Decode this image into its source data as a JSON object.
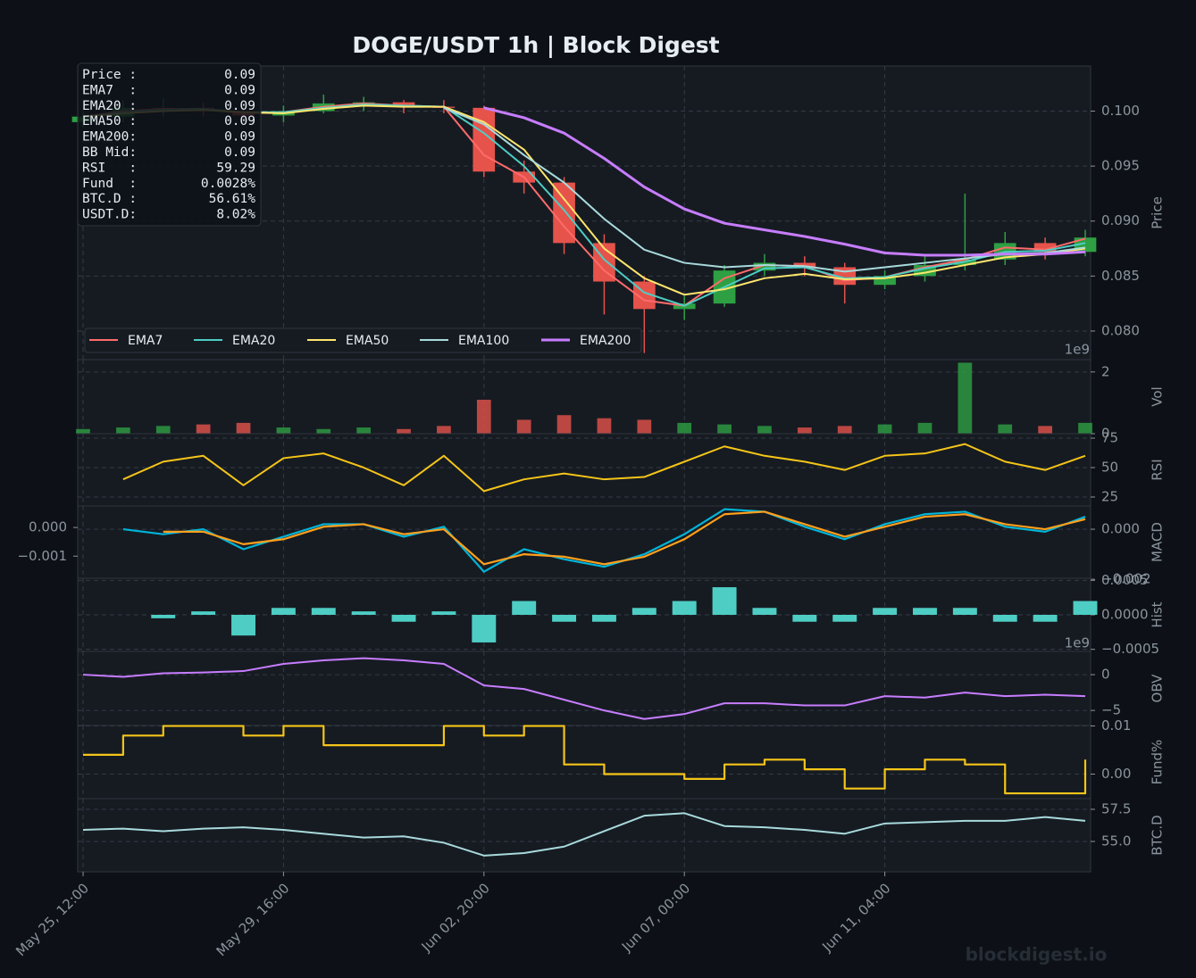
{
  "title": "DOGE/USDT  1h  |  Block Digest",
  "watermark": "blockdigest.io",
  "footer": "blockdigest.io",
  "info_box": {
    "rows": [
      {
        "label": "Price :",
        "value": "0.09"
      },
      {
        "label": "EMA7  :",
        "value": "0.09"
      },
      {
        "label": "EMA20 :",
        "value": "0.09"
      },
      {
        "label": "EMA50 :",
        "value": "0.09"
      },
      {
        "label": "EMA200:",
        "value": "0.09"
      },
      {
        "label": "BB Mid:",
        "value": "0.09"
      },
      {
        "label": "RSI   :",
        "value": "59.29"
      },
      {
        "label": "Fund  :",
        "value": "0.0028%"
      },
      {
        "label": "BTC.D :",
        "value": "56.61%"
      },
      {
        "label": "USDT.D:",
        "value": "8.02%"
      }
    ]
  },
  "chart_data": [
    {
      "type": "candlestick",
      "y_label": "Price",
      "categories": [
        "May 25, 12:00",
        null,
        null,
        null,
        null,
        "May 29, 16:00",
        null,
        null,
        null,
        null,
        "Jun 02, 20:00",
        null,
        null,
        null,
        null,
        "Jun 07, 00:00",
        null,
        null,
        null,
        null,
        "Jun 11, 04:00",
        null,
        null,
        null,
        null,
        null
      ],
      "open": [
        0.099,
        0.0995,
        0.1003,
        0.1003,
        0.1,
        0.0996,
        0.1,
        0.1007,
        0.1008,
        0.1004,
        0.1003,
        0.0945,
        0.0935,
        0.088,
        0.0845,
        0.082,
        0.0825,
        0.0855,
        0.0862,
        0.0858,
        0.0842,
        0.085,
        0.086,
        0.0865,
        0.088,
        0.0872
      ],
      "high": [
        0.1,
        0.101,
        0.1012,
        0.1008,
        0.1003,
        0.1005,
        0.1015,
        0.1013,
        0.101,
        0.101,
        0.1005,
        0.0955,
        0.094,
        0.0888,
        0.085,
        0.0832,
        0.086,
        0.087,
        0.0868,
        0.0862,
        0.0855,
        0.0868,
        0.0925,
        0.089,
        0.0885,
        0.0892
      ],
      "low": [
        0.0985,
        0.099,
        0.0995,
        0.0995,
        0.099,
        0.099,
        0.0998,
        0.1,
        0.0998,
        0.0998,
        0.094,
        0.0925,
        0.087,
        0.0815,
        0.078,
        0.081,
        0.0822,
        0.085,
        0.085,
        0.0825,
        0.0838,
        0.0845,
        0.0855,
        0.086,
        0.0865,
        0.0868
      ],
      "close": [
        0.0995,
        0.1003,
        0.1003,
        0.1,
        0.0996,
        0.1,
        0.1007,
        0.1008,
        0.1004,
        0.1003,
        0.0945,
        0.0935,
        0.088,
        0.0845,
        0.082,
        0.0825,
        0.0855,
        0.0862,
        0.0858,
        0.0842,
        0.085,
        0.086,
        0.0865,
        0.088,
        0.0872,
        0.0885
      ],
      "up_color": "#2ea043",
      "down_color": "#e5534b",
      "series": [
        {
          "name": "EMA7",
          "color": "#ff6b6b",
          "values": [
            0.0995,
            0.1,
            0.1002,
            0.1002,
            0.0998,
            0.0999,
            0.1004,
            0.1007,
            0.1005,
            0.1004,
            0.096,
            0.094,
            0.0895,
            0.0855,
            0.0828,
            0.0823,
            0.0848,
            0.086,
            0.0859,
            0.0846,
            0.0849,
            0.0858,
            0.0865,
            0.0876,
            0.0874,
            0.0884
          ]
        },
        {
          "name": "EMA20",
          "color": "#4ecdc4",
          "values": [
            0.0995,
            0.0999,
            0.1001,
            0.1002,
            0.0999,
            0.0999,
            0.1003,
            0.1006,
            0.1005,
            0.1004,
            0.098,
            0.095,
            0.091,
            0.0865,
            0.0835,
            0.0823,
            0.084,
            0.0857,
            0.0858,
            0.0848,
            0.0849,
            0.0857,
            0.0863,
            0.0872,
            0.0873,
            0.088
          ]
        },
        {
          "name": "EMA50",
          "color": "#ffe66d",
          "values": [
            0.0995,
            0.0998,
            0.1,
            0.1001,
            0.0999,
            0.0998,
            0.1002,
            0.1005,
            0.1004,
            0.1004,
            0.099,
            0.0965,
            0.092,
            0.0875,
            0.0848,
            0.0833,
            0.0838,
            0.0848,
            0.0852,
            0.0847,
            0.0848,
            0.0853,
            0.086,
            0.0867,
            0.087,
            0.0875
          ]
        },
        {
          "name": "EMA100",
          "color": "#a8dadc",
          "values": [
            null,
            null,
            null,
            null,
            null,
            null,
            null,
            null,
            null,
            0.1003,
            0.0988,
            0.096,
            0.0935,
            0.0902,
            0.0874,
            0.0862,
            0.0858,
            0.086,
            0.0859,
            0.0854,
            0.0858,
            0.0862,
            0.0866,
            0.087,
            0.0871,
            0.0876
          ]
        },
        {
          "name": "EMA200",
          "color": "#c77dff",
          "values": [
            null,
            null,
            null,
            null,
            null,
            null,
            null,
            null,
            null,
            null,
            0.1003,
            0.0994,
            0.098,
            0.0957,
            0.0931,
            0.0911,
            0.0898,
            0.0892,
            0.0886,
            0.0879,
            0.0871,
            0.0869,
            0.0869,
            0.087,
            0.087,
            0.0872
          ]
        }
      ],
      "legend": "lower left",
      "ylim": [
        0.0774,
        0.1041
      ],
      "yticks": [
        {
          "value": 0.08,
          "label": "0.080"
        },
        {
          "value": 0.085,
          "label": "0.085"
        },
        {
          "value": 0.09,
          "label": "0.090"
        },
        {
          "value": 0.095,
          "label": "0.095"
        },
        {
          "value": 0.1,
          "label": "0.100"
        }
      ],
      "grid": true
    },
    {
      "type": "bar",
      "y_label": "Vol",
      "offset_label": "1e9",
      "values": [
        0.15,
        0.2,
        0.25,
        0.3,
        0.35,
        0.2,
        0.15,
        0.2,
        0.15,
        0.25,
        1.1,
        0.45,
        0.6,
        0.5,
        0.45,
        0.35,
        0.3,
        0.25,
        0.2,
        0.25,
        0.3,
        0.35,
        2.3,
        0.3,
        0.25,
        0.35
      ],
      "ylim": [
        0,
        2.4
      ],
      "yticks": [
        0,
        2
      ],
      "grid": true
    },
    {
      "type": "line",
      "y_label": "RSI",
      "color": "#f5c518",
      "values": [
        null,
        40,
        55,
        60,
        35,
        58,
        62,
        50,
        35,
        60,
        30,
        40,
        45,
        40,
        42,
        55,
        68,
        60,
        55,
        48,
        60,
        62,
        70,
        55,
        48,
        60
      ],
      "ylim": [
        17.4,
        78.8
      ],
      "yticks": [
        25,
        50,
        75
      ],
      "grid": true
    },
    {
      "type": "line",
      "y_label": "MACD",
      "series": [
        {
          "color": "#00b4d8",
          "values": [
            null,
            0.0,
            -0.0002,
            0.0,
            -0.0008,
            -0.0003,
            0.0002,
            0.0002,
            -0.0003,
            0.0001,
            -0.0017,
            -0.0008,
            -0.0012,
            -0.0015,
            -0.001,
            -0.0002,
            0.0008,
            0.0007,
            0.0001,
            -0.0004,
            0.0002,
            0.0006,
            0.0007,
            0.0001,
            -0.0001,
            0.0005
          ]
        },
        {
          "color": "#ff9f1c",
          "values": [
            null,
            null,
            -0.0001,
            -0.0001,
            -0.0006,
            -0.0004,
            0.0001,
            0.0002,
            -0.0002,
            0.0,
            -0.0014,
            -0.001,
            -0.0011,
            -0.0014,
            -0.0011,
            -0.0004,
            0.0006,
            0.0007,
            0.0002,
            -0.0003,
            0.0001,
            0.0005,
            0.0006,
            0.0002,
            0.0,
            0.0004
          ]
        }
      ],
      "ylim": [
        -0.00196,
        0.00093
      ],
      "yticks": [
        {
          "value": 0.0,
          "label": "0.000"
        },
        {
          "value": -0.002,
          "label": "−0.002"
        }
      ],
      "y2lim": [
        -0.00177,
        0.00075
      ],
      "y2ticks": [
        {
          "value": 0.0,
          "label": "0.000"
        },
        {
          "value": -0.001,
          "label": "−0.001"
        }
      ],
      "grid": true
    },
    {
      "type": "bar",
      "y_label": "Hist",
      "color": "#4ecdc4",
      "values": [
        null,
        null,
        -5e-05,
        5e-05,
        -0.0003,
        0.0001,
        0.0001,
        5e-05,
        -0.0001,
        5e-05,
        -0.0004,
        0.0002,
        -0.0001,
        -0.0001,
        0.0001,
        0.0002,
        0.0004,
        0.0001,
        -0.0001,
        -0.0001,
        0.0001,
        0.0001,
        0.0001,
        -0.0001,
        -0.0001,
        0.0002
      ],
      "ylim": [
        -0.00053,
        0.00053
      ],
      "yticks": [
        {
          "value": -0.0005,
          "label": "−0.0005"
        },
        {
          "value": 0,
          "label": "0.0000"
        },
        {
          "value": 0.0005,
          "label": "0.0005"
        }
      ],
      "grid": true
    },
    {
      "type": "line",
      "y_label": "OBV",
      "offset_label": "1e9",
      "color": "#c77dff",
      "values": [
        0,
        -0.3,
        0.2,
        0.3,
        0.5,
        1.5,
        2.0,
        2.3,
        2.0,
        1.5,
        -1.5,
        -2.0,
        -3.5,
        -5.0,
        -6.2,
        -5.5,
        -4.0,
        -4.0,
        -4.3,
        -4.3,
        -3.0,
        -3.2,
        -2.5,
        -3.0,
        -2.8,
        -3.0
      ],
      "ylim": [
        -7.1,
        3.25
      ],
      "yticks": [
        {
          "value": -5,
          "label": "−5"
        },
        0
      ],
      "grid": true
    },
    {
      "type": "step",
      "y_label": "Fund%",
      "color": "#f5c518",
      "values": [
        0.004,
        0.008,
        0.01,
        0.01,
        0.008,
        0.01,
        0.006,
        0.006,
        0.006,
        0.01,
        0.008,
        0.01,
        0.002,
        0.0,
        0.0,
        -0.001,
        0.002,
        0.003,
        0.001,
        -0.003,
        0.001,
        0.003,
        0.002,
        -0.004,
        -0.004,
        0.003
      ],
      "ylim": [
        -0.0051,
        0.0101
      ],
      "yticks": [
        {
          "value": 0,
          "label": "0.00"
        },
        0.01
      ],
      "grid": true
    },
    {
      "type": "line",
      "y_label": "BTC.D",
      "color": "#a8dadc",
      "values": [
        55.9,
        56.0,
        55.8,
        56.0,
        56.1,
        55.9,
        55.6,
        55.3,
        55.4,
        54.9,
        53.9,
        54.1,
        54.6,
        55.8,
        57.0,
        57.2,
        56.2,
        56.1,
        55.9,
        55.6,
        56.4,
        56.5,
        56.6,
        56.6,
        56.9,
        56.6
      ],
      "ylim": [
        52.64,
        58.33
      ],
      "yticks": [
        {
          "value": 55,
          "label": "55.0"
        },
        57.5
      ],
      "grid": true
    }
  ]
}
